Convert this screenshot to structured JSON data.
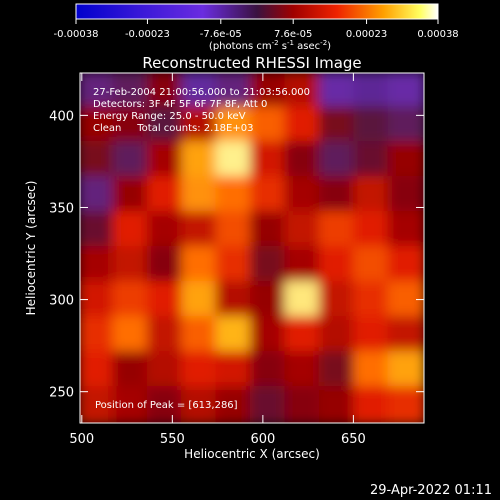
{
  "colorbar": {
    "ticks": [
      "-0.00038",
      "-0.00023",
      "-7.6e-05",
      "7.6e-05",
      "0.00023",
      "0.00038"
    ],
    "tick_values": [
      -0.00038,
      -0.00023,
      -7.6e-05,
      7.6e-05,
      0.00023,
      0.00038
    ],
    "range": [
      -0.00038,
      0.00038
    ],
    "unit_prefix": "(photons cm",
    "unit_exp1": "-2",
    "unit_mid": " s",
    "unit_exp2": "-1",
    "unit_suffix": " asec",
    "unit_exp3": "-2",
    "unit_close": ")"
  },
  "chart_data": {
    "type": "heatmap",
    "title": "Reconstructed RHESSI Image",
    "xlabel": "Heliocentric X (arcsec)",
    "ylabel": "Heliocentric Y (arcsec)",
    "xlim": [
      499,
      689
    ],
    "ylim": [
      233,
      423
    ],
    "xticks": [
      500,
      550,
      600,
      650
    ],
    "yticks": [
      250,
      300,
      350,
      400
    ],
    "colormap": "RHESSI blue-purple-red-orange-yellow-white",
    "info_lines": [
      "27-Feb-2004 21:00:56.000 to 21:03:56.000",
      "Detectors: 3F 4F 5F 6F 7F 8F, Att 0",
      "Energy Range: 25.0 - 50.0 keV",
      "Clean     Total counts: 2.18E+03"
    ],
    "peak_label": "Position of Peak = [613,286]",
    "peak": [
      613,
      286
    ],
    "intensity_level_grid": {
      "x_range": [
        499,
        689
      ],
      "y_range": [
        233,
        423
      ],
      "cols": 10,
      "rows": 10,
      "values": [
        [
          0.48,
          0.5,
          0.58,
          0.42,
          0.48,
          0.6,
          0.64,
          0.44,
          0.4,
          0.44
        ],
        [
          0.6,
          0.58,
          0.52,
          0.64,
          0.84,
          0.78,
          0.7,
          0.56,
          0.52,
          0.5
        ],
        [
          0.56,
          0.5,
          0.62,
          0.86,
          0.95,
          0.68,
          0.58,
          0.5,
          0.54,
          0.6
        ],
        [
          0.48,
          0.6,
          0.7,
          0.84,
          0.8,
          0.72,
          0.62,
          0.58,
          0.66,
          0.58
        ],
        [
          0.54,
          0.7,
          0.62,
          0.66,
          0.76,
          0.6,
          0.66,
          0.74,
          0.7,
          0.62
        ],
        [
          0.62,
          0.66,
          0.58,
          0.8,
          0.72,
          0.56,
          0.62,
          0.7,
          0.76,
          0.7
        ],
        [
          0.68,
          0.74,
          0.7,
          0.86,
          0.64,
          0.6,
          0.94,
          0.66,
          0.72,
          0.78
        ],
        [
          0.72,
          0.8,
          0.66,
          0.78,
          0.88,
          0.62,
          0.7,
          0.64,
          0.7,
          0.66
        ],
        [
          0.7,
          0.6,
          0.64,
          0.7,
          0.68,
          0.58,
          0.62,
          0.56,
          0.8,
          0.86
        ],
        [
          0.66,
          0.62,
          0.58,
          0.64,
          0.6,
          0.54,
          0.58,
          0.6,
          0.7,
          0.72
        ]
      ]
    }
  },
  "footer": {
    "timestamp": "29-Apr-2022 01:11"
  }
}
